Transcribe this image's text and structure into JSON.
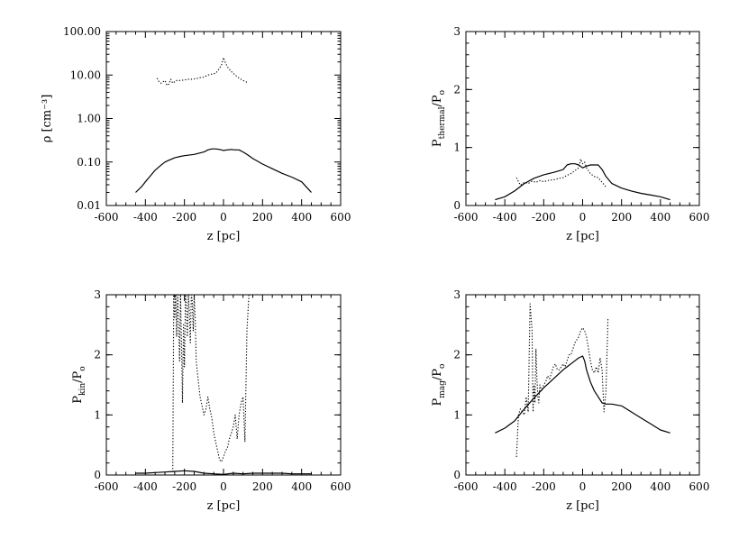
{
  "chart_data": [
    {
      "type": "line",
      "xlabel": "z [pc]",
      "ylabel": "ρ [cm⁻³]",
      "yscale": "log",
      "xlim": [
        -600,
        600
      ],
      "ylim": [
        0.01,
        100
      ],
      "xticks": [
        "-600",
        "-400",
        "-200",
        "0",
        "200",
        "400",
        "600"
      ],
      "yticks": [
        "0.01",
        "0.10",
        "1.00",
        "10.00",
        "100.00"
      ],
      "series": [
        {
          "style": "solid",
          "x": [
            -450,
            -420,
            -400,
            -380,
            -350,
            -320,
            -300,
            -280,
            -250,
            -220,
            -200,
            -150,
            -100,
            -80,
            -60,
            -40,
            -20,
            0,
            20,
            40,
            60,
            80,
            100,
            120,
            150,
            200,
            250,
            300,
            350,
            400,
            430,
            450
          ],
          "y": [
            0.02,
            0.027,
            0.035,
            0.045,
            0.065,
            0.085,
            0.1,
            0.11,
            0.125,
            0.135,
            0.14,
            0.15,
            0.17,
            0.19,
            0.2,
            0.2,
            0.195,
            0.185,
            0.19,
            0.195,
            0.19,
            0.19,
            0.17,
            0.15,
            0.12,
            0.09,
            0.07,
            0.055,
            0.045,
            0.035,
            0.025,
            0.02
          ]
        },
        {
          "style": "dotted",
          "x": [
            -340,
            -330,
            -320,
            -300,
            -290,
            -280,
            -270,
            -260,
            -250,
            -240,
            -220,
            -200,
            -180,
            -160,
            -140,
            -120,
            -100,
            -80,
            -60,
            -40,
            -30,
            -20,
            -10,
            0,
            10,
            20,
            40,
            60,
            80,
            100,
            120
          ],
          "y": [
            8.5,
            7.0,
            6.5,
            7.5,
            5.8,
            6.2,
            8.0,
            6.5,
            7.0,
            7.5,
            7.5,
            7.7,
            8.0,
            8.0,
            8.3,
            8.7,
            9.0,
            10.0,
            10.5,
            11.0,
            12.5,
            14.5,
            17.0,
            25.0,
            19.0,
            15.5,
            12.0,
            10.0,
            8.5,
            7.5,
            6.8
          ]
        }
      ]
    },
    {
      "type": "line",
      "xlabel": "z [pc]",
      "ylabel": "P_thermal/P_o",
      "xlim": [
        -600,
        600
      ],
      "ylim": [
        0,
        3
      ],
      "xticks": [
        "-600",
        "-400",
        "-200",
        "0",
        "200",
        "400",
        "600"
      ],
      "yticks": [
        "0",
        "1",
        "2",
        "3"
      ],
      "series": [
        {
          "style": "solid",
          "x": [
            -450,
            -400,
            -350,
            -300,
            -250,
            -200,
            -150,
            -120,
            -100,
            -80,
            -60,
            -40,
            -20,
            0,
            20,
            40,
            60,
            80,
            100,
            120,
            150,
            200,
            250,
            300,
            350,
            400,
            450
          ],
          "y": [
            0.1,
            0.15,
            0.25,
            0.38,
            0.47,
            0.53,
            0.57,
            0.6,
            0.62,
            0.7,
            0.72,
            0.72,
            0.7,
            0.65,
            0.68,
            0.7,
            0.7,
            0.7,
            0.62,
            0.5,
            0.38,
            0.3,
            0.25,
            0.21,
            0.18,
            0.15,
            0.1
          ]
        },
        {
          "style": "dotted",
          "x": [
            -340,
            -320,
            -300,
            -280,
            -260,
            -240,
            -220,
            -200,
            -180,
            -160,
            -140,
            -120,
            -100,
            -80,
            -60,
            -40,
            -20,
            -10,
            0,
            10,
            20,
            40,
            60,
            80,
            100,
            120
          ],
          "y": [
            0.48,
            0.35,
            0.4,
            0.38,
            0.42,
            0.4,
            0.43,
            0.41,
            0.43,
            0.44,
            0.45,
            0.47,
            0.48,
            0.52,
            0.55,
            0.6,
            0.65,
            0.8,
            0.72,
            0.75,
            0.65,
            0.55,
            0.5,
            0.48,
            0.4,
            0.32
          ]
        }
      ]
    },
    {
      "type": "line",
      "xlabel": "z [pc]",
      "ylabel": "P_kin/P_o",
      "xlim": [
        -600,
        600
      ],
      "ylim": [
        0,
        3
      ],
      "xticks": [
        "-600",
        "-400",
        "-200",
        "0",
        "200",
        "400",
        "600"
      ],
      "yticks": [
        "0",
        "1",
        "2",
        "3"
      ],
      "series": [
        {
          "style": "solid",
          "x": [
            -450,
            -400,
            -350,
            -300,
            -250,
            -200,
            -150,
            -100,
            -50,
            0,
            50,
            100,
            150,
            200,
            250,
            300,
            350,
            400,
            450
          ],
          "y": [
            0.03,
            0.03,
            0.04,
            0.05,
            0.06,
            0.07,
            0.06,
            0.03,
            0.02,
            0.01,
            0.03,
            0.02,
            0.03,
            0.03,
            0.03,
            0.03,
            0.02,
            0.02,
            0.02
          ]
        },
        {
          "style": "dotted",
          "x": [
            -260,
            -255,
            -250,
            -245,
            -240,
            -235,
            -230,
            -225,
            -220,
            -215,
            -210,
            -205,
            -200,
            -195,
            -190,
            -185,
            -180,
            -175,
            -170,
            -165,
            -160,
            -155,
            -150,
            -145,
            -140,
            -130,
            -120,
            -110,
            -100,
            -90,
            -80,
            -70,
            -60,
            -50,
            -40,
            -30,
            -20,
            -10,
            0,
            10,
            20,
            30,
            40,
            50,
            60,
            70,
            80,
            90,
            100,
            110,
            120,
            130
          ],
          "y": [
            0.05,
            3.0,
            2.6,
            3.0,
            2.3,
            3.0,
            2.5,
            1.9,
            3.0,
            2.2,
            1.2,
            2.5,
            1.8,
            3.0,
            2.8,
            2.3,
            3.0,
            2.7,
            2.2,
            3.0,
            2.9,
            2.4,
            3.0,
            2.6,
            1.9,
            1.6,
            1.3,
            1.15,
            1.0,
            1.1,
            1.3,
            1.1,
            0.95,
            0.7,
            0.55,
            0.4,
            0.25,
            0.22,
            0.3,
            0.4,
            0.45,
            0.6,
            0.7,
            0.8,
            1.0,
            0.6,
            1.0,
            1.2,
            1.3,
            0.55,
            2.4,
            3.0
          ]
        }
      ]
    },
    {
      "type": "line",
      "xlabel": "z [pc]",
      "ylabel": "P_mag/P_o",
      "xlim": [
        -600,
        600
      ],
      "ylim": [
        0,
        3
      ],
      "xticks": [
        "-600",
        "-400",
        "-200",
        "0",
        "200",
        "400",
        "600"
      ],
      "yticks": [
        "0",
        "1",
        "2",
        "3"
      ],
      "series": [
        {
          "style": "solid",
          "x": [
            -450,
            -400,
            -350,
            -300,
            -250,
            -200,
            -150,
            -100,
            -80,
            -60,
            -40,
            -20,
            0,
            10,
            20,
            40,
            60,
            80,
            100,
            120,
            150,
            200,
            250,
            300,
            350,
            400,
            450
          ],
          "y": [
            0.7,
            0.78,
            0.9,
            1.1,
            1.28,
            1.45,
            1.6,
            1.75,
            1.8,
            1.85,
            1.9,
            1.95,
            1.98,
            1.9,
            1.75,
            1.55,
            1.4,
            1.3,
            1.2,
            1.18,
            1.18,
            1.15,
            1.05,
            0.95,
            0.85,
            0.75,
            0.7
          ]
        },
        {
          "style": "dotted",
          "x": [
            -340,
            -330,
            -320,
            -300,
            -290,
            -280,
            -270,
            -260,
            -255,
            -250,
            -245,
            -240,
            -235,
            -230,
            -225,
            -220,
            -210,
            -200,
            -190,
            -180,
            -170,
            -160,
            -150,
            -140,
            -130,
            -120,
            -110,
            -100,
            -90,
            -80,
            -70,
            -60,
            -50,
            -40,
            -30,
            -20,
            -10,
            0,
            10,
            20,
            30,
            40,
            50,
            60,
            70,
            80,
            90,
            100,
            110,
            120,
            130
          ],
          "y": [
            0.3,
            1.0,
            1.1,
            1.0,
            1.3,
            1.05,
            2.85,
            2.4,
            1.05,
            1.5,
            1.2,
            2.1,
            1.6,
            1.3,
            1.2,
            1.5,
            1.4,
            1.5,
            1.55,
            1.65,
            1.6,
            1.7,
            1.8,
            1.85,
            1.75,
            1.75,
            1.8,
            1.85,
            1.8,
            1.9,
            2.0,
            2.0,
            2.1,
            2.2,
            2.25,
            2.3,
            2.4,
            2.45,
            2.4,
            2.3,
            2.1,
            1.9,
            1.75,
            1.7,
            1.8,
            1.7,
            1.95,
            1.75,
            1.05,
            1.4,
            2.6
          ]
        }
      ]
    }
  ]
}
